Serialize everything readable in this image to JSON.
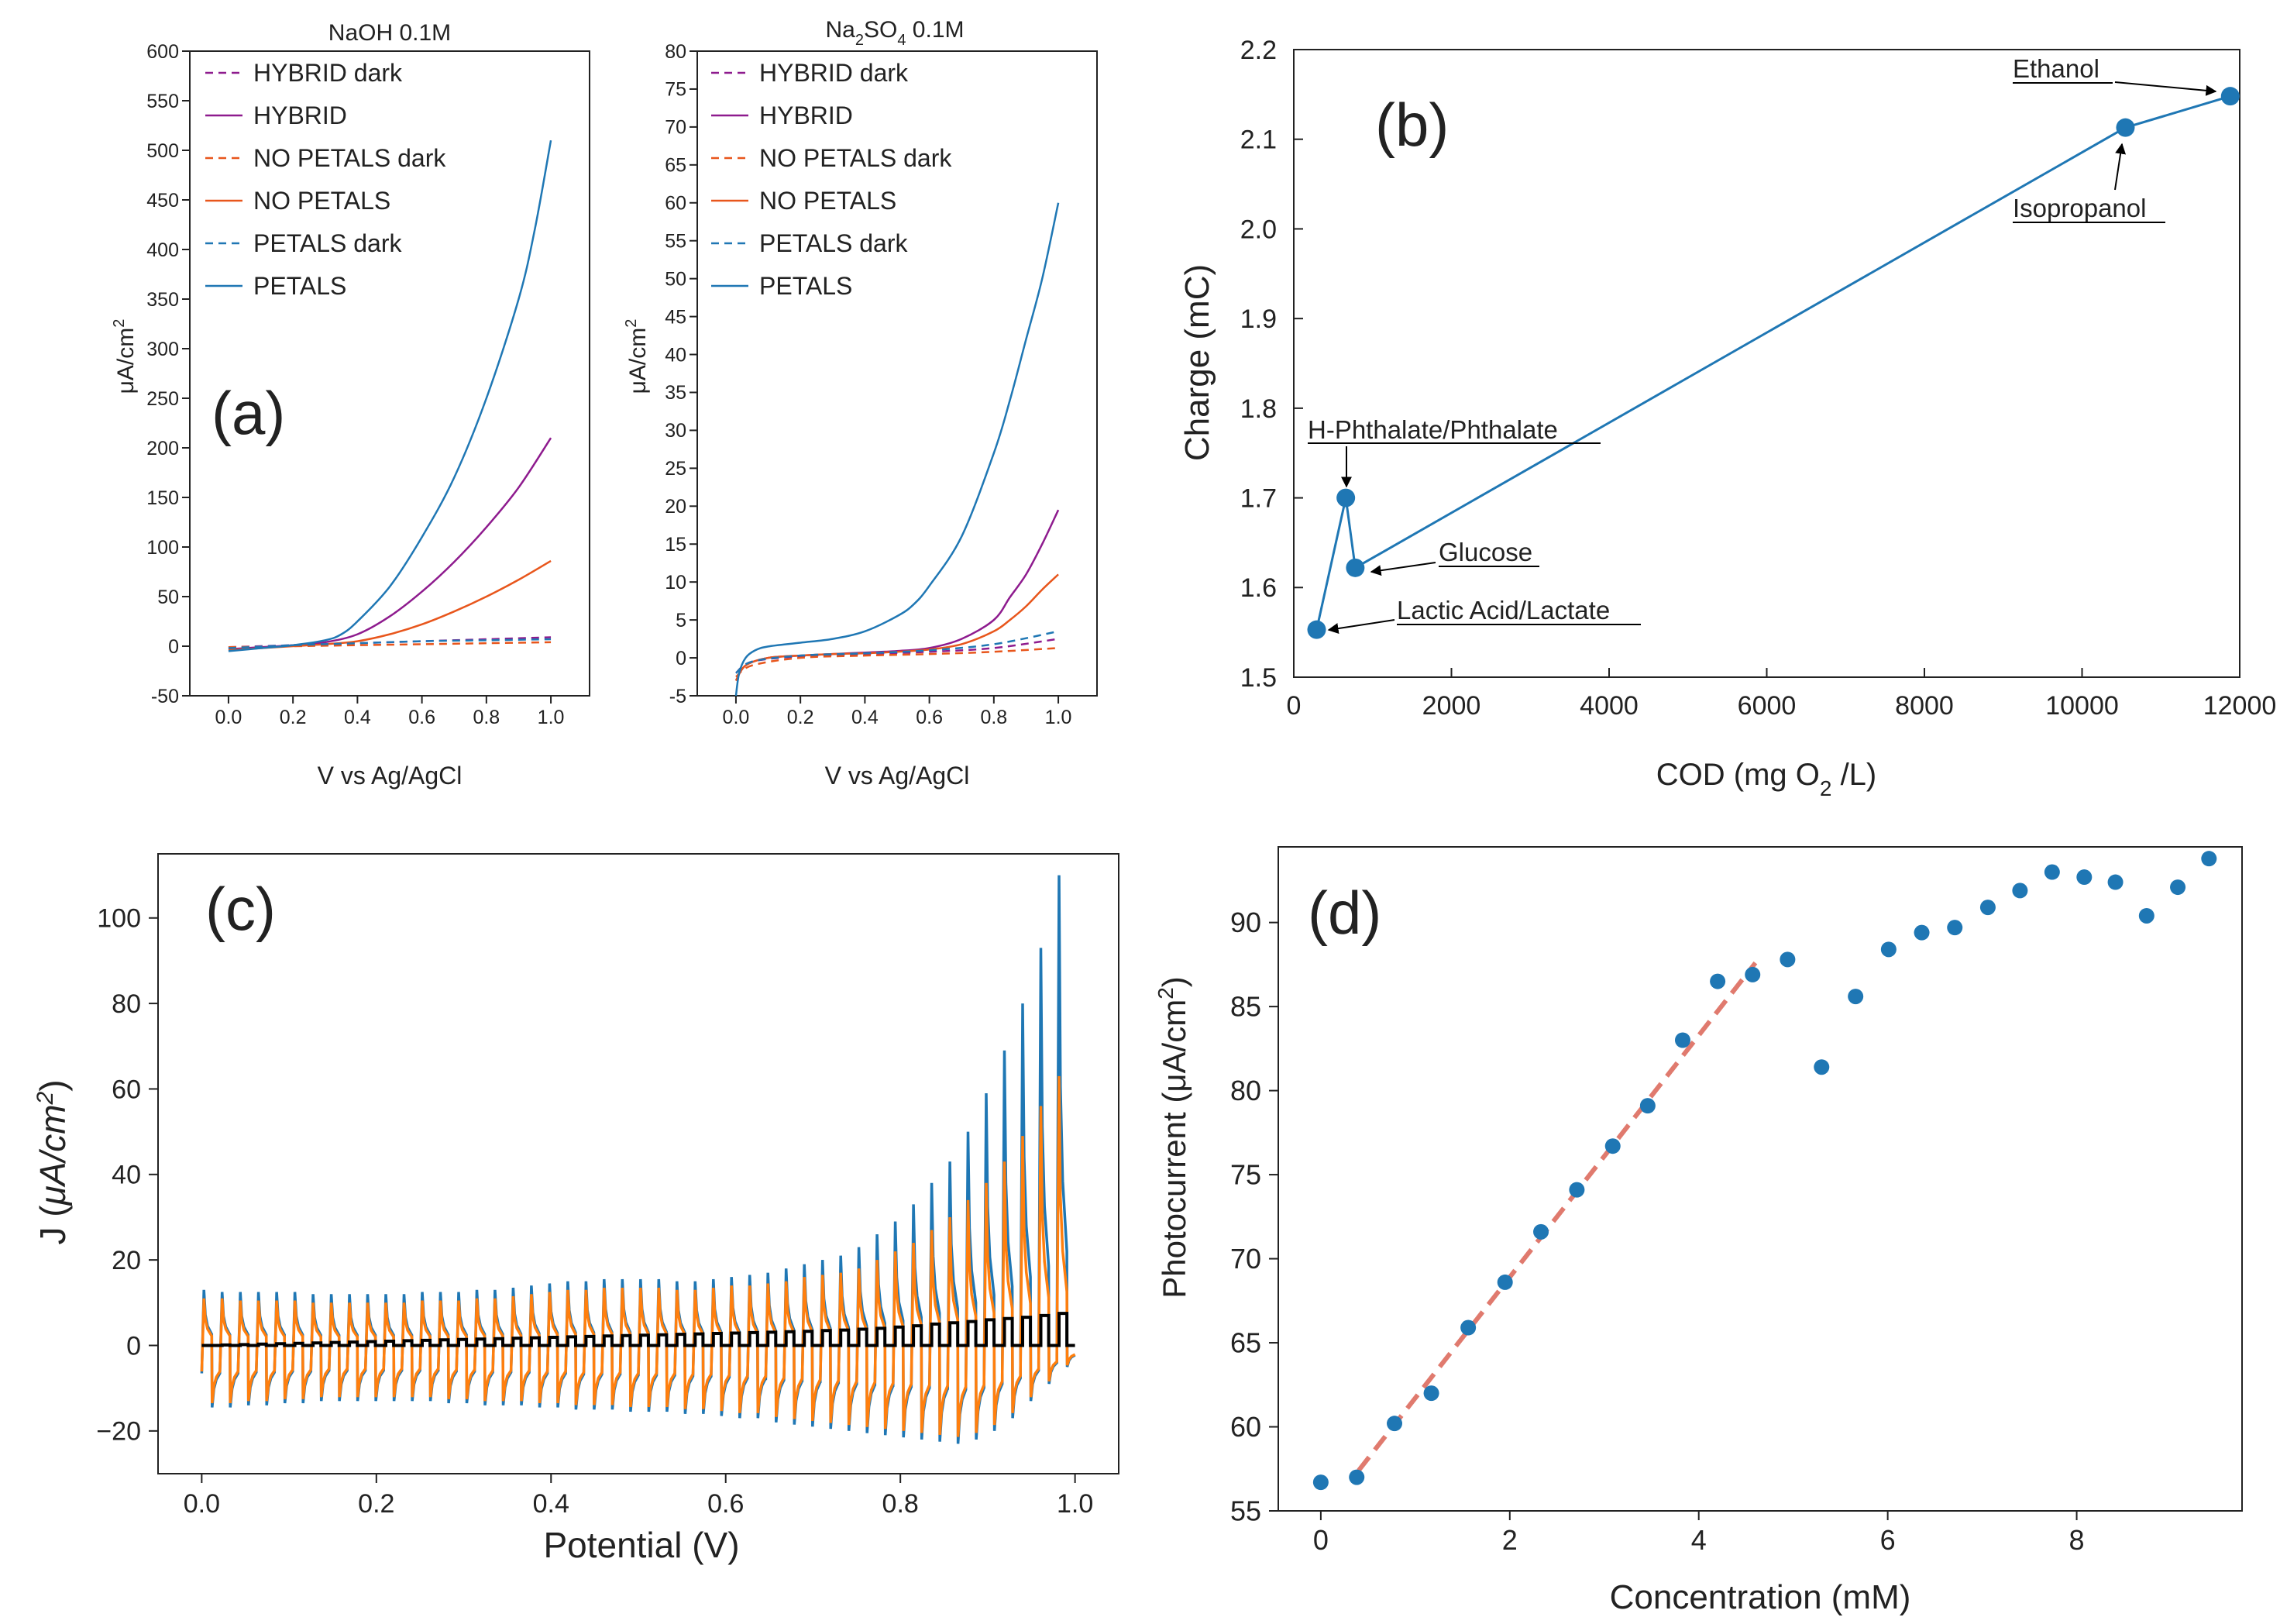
{
  "colors": {
    "hybrid": "#8e1b8e",
    "nopetals": "#e8561c",
    "petals": "#1f77b4",
    "blue": "#1f77b4",
    "orange": "#ff7f0e",
    "black": "#000000",
    "fit": "#e07a6e",
    "axis": "#000000"
  },
  "chart_data": [
    {
      "id": "a1",
      "type": "line",
      "title": "NaOH 0.1M",
      "panel_label": "(a)",
      "xlabel": "V vs Ag/AgCl",
      "ylabel": "μA/cm",
      "ylabel_sup": "2",
      "xlim": [
        -0.12,
        1.12
      ],
      "ylim": [
        -50,
        600
      ],
      "xticks": [
        0,
        0.2,
        0.4,
        0.6,
        0.8,
        1.0
      ],
      "xtick_labels": [
        "0.0",
        "0.2",
        "0.4",
        "0.6",
        "0.8",
        "1.0"
      ],
      "yticks": [
        -50,
        0,
        50,
        100,
        150,
        200,
        250,
        300,
        350,
        400,
        450,
        500,
        550,
        600
      ],
      "ytick_labels": [
        "-50",
        "0",
        "50",
        "100",
        "150",
        "200",
        "250",
        "300",
        "350",
        "400",
        "450",
        "500",
        "550",
        "600"
      ],
      "series": [
        {
          "name": "HYBRID dark",
          "color": "hybrid",
          "dashed": true,
          "x": [
            0,
            0.2,
            0.4,
            0.6,
            0.8,
            1.0
          ],
          "y": [
            -1,
            1,
            3,
            5,
            7,
            9
          ]
        },
        {
          "name": "HYBRID",
          "color": "hybrid",
          "dashed": false,
          "x": [
            0,
            0.1,
            0.2,
            0.3,
            0.4,
            0.5,
            0.6,
            0.7,
            0.8,
            0.9,
            1.0
          ],
          "y": [
            -3,
            -1,
            1,
            4,
            12,
            30,
            55,
            85,
            120,
            160,
            210
          ]
        },
        {
          "name": "NO PETALS dark",
          "color": "nopetals",
          "dashed": true,
          "x": [
            0,
            0.2,
            0.4,
            0.6,
            0.8,
            1.0
          ],
          "y": [
            -1,
            0,
            1,
            2,
            3,
            4
          ]
        },
        {
          "name": "NO PETALS",
          "color": "nopetals",
          "dashed": false,
          "x": [
            0,
            0.1,
            0.2,
            0.3,
            0.4,
            0.5,
            0.6,
            0.7,
            0.8,
            0.9,
            1.0
          ],
          "y": [
            -4,
            -2,
            0,
            2,
            5,
            12,
            22,
            35,
            50,
            67,
            86
          ]
        },
        {
          "name": "PETALS dark",
          "color": "petals",
          "dashed": true,
          "x": [
            0,
            0.2,
            0.4,
            0.6,
            0.8,
            1.0
          ],
          "y": [
            -2,
            1,
            3,
            5,
            6,
            7
          ]
        },
        {
          "name": "PETALS",
          "color": "petals",
          "dashed": false,
          "x": [
            0,
            0.1,
            0.2,
            0.3,
            0.35,
            0.4,
            0.5,
            0.6,
            0.7,
            0.8,
            0.9,
            0.95,
            1.0
          ],
          "y": [
            -5,
            -2,
            1,
            6,
            12,
            25,
            60,
            110,
            170,
            250,
            350,
            420,
            510
          ]
        }
      ]
    },
    {
      "id": "a2",
      "type": "line",
      "title_parts": [
        "Na",
        "2",
        "SO",
        "4",
        " 0.1M"
      ],
      "xlabel": "V vs Ag/AgCl",
      "ylabel": "μA/cm",
      "ylabel_sup": "2",
      "xlim": [
        -0.12,
        1.12
      ],
      "ylim": [
        -5,
        80
      ],
      "xticks": [
        0,
        0.2,
        0.4,
        0.6,
        0.8,
        1.0
      ],
      "xtick_labels": [
        "0.0",
        "0.2",
        "0.4",
        "0.6",
        "0.8",
        "1.0"
      ],
      "yticks": [
        -5,
        0,
        5,
        10,
        15,
        20,
        25,
        30,
        35,
        40,
        45,
        50,
        55,
        60,
        65,
        70,
        75,
        80
      ],
      "ytick_labels": [
        "-5",
        "0",
        "5",
        "10",
        "15",
        "20",
        "25",
        "30",
        "35",
        "40",
        "45",
        "50",
        "55",
        "60",
        "65",
        "70",
        "75",
        "80"
      ],
      "series": [
        {
          "name": "HYBRID dark",
          "color": "hybrid",
          "dashed": true,
          "x": [
            0,
            0.05,
            0.2,
            0.4,
            0.6,
            0.8,
            1.0
          ],
          "y": [
            -2,
            -0.5,
            0.2,
            0.5,
            0.8,
            1.3,
            2.5
          ]
        },
        {
          "name": "HYBRID",
          "color": "hybrid",
          "dashed": false,
          "x": [
            0,
            0.03,
            0.1,
            0.2,
            0.3,
            0.4,
            0.5,
            0.6,
            0.7,
            0.8,
            0.85,
            0.9,
            0.95,
            1.0
          ],
          "y": [
            -3,
            -1,
            0,
            0.3,
            0.5,
            0.7,
            0.9,
            1.3,
            2.5,
            5,
            8,
            11,
            15,
            19.5
          ]
        },
        {
          "name": "NO PETALS dark",
          "color": "nopetals",
          "dashed": true,
          "x": [
            0,
            0.05,
            0.2,
            0.4,
            0.6,
            0.8,
            1.0
          ],
          "y": [
            -2.5,
            -1,
            0,
            0.3,
            0.5,
            0.8,
            1.3
          ]
        },
        {
          "name": "NO PETALS",
          "color": "nopetals",
          "dashed": false,
          "x": [
            0,
            0.03,
            0.1,
            0.2,
            0.3,
            0.4,
            0.5,
            0.6,
            0.7,
            0.8,
            0.85,
            0.9,
            0.95,
            1.0
          ],
          "y": [
            -3,
            -1,
            0,
            0.3,
            0.5,
            0.6,
            0.8,
            1.1,
            1.8,
            3.5,
            5,
            6.8,
            9,
            11
          ]
        },
        {
          "name": "PETALS dark",
          "color": "petals",
          "dashed": true,
          "x": [
            0,
            0.05,
            0.2,
            0.4,
            0.6,
            0.8,
            1.0
          ],
          "y": [
            -2,
            -0.5,
            0.3,
            0.6,
            1,
            1.8,
            3.5
          ]
        },
        {
          "name": "PETALS",
          "color": "petals",
          "dashed": false,
          "x": [
            0,
            0.01,
            0.03,
            0.06,
            0.1,
            0.2,
            0.3,
            0.4,
            0.5,
            0.55,
            0.6,
            0.7,
            0.8,
            0.85,
            0.9,
            0.95,
            1.0
          ],
          "y": [
            -5,
            -2,
            0,
            1,
            1.5,
            2,
            2.5,
            3.5,
            5.5,
            7,
            9.5,
            16,
            27,
            34,
            42,
            50,
            60
          ]
        }
      ]
    },
    {
      "id": "b",
      "type": "line",
      "panel_label": "(b)",
      "xlabel_parts": [
        "COD (mg O",
        "2",
        " /L)"
      ],
      "ylabel": "Charge (mC)",
      "xlim": [
        0,
        12000
      ],
      "ylim": [
        1.5,
        2.2
      ],
      "xticks": [
        0,
        2000,
        4000,
        6000,
        8000,
        10000,
        12000
      ],
      "xtick_labels": [
        "0",
        "2000",
        "4000",
        "6000",
        "8000",
        "10000",
        "12000"
      ],
      "yticks": [
        1.5,
        1.6,
        1.7,
        1.8,
        1.9,
        2.0,
        2.1,
        2.2
      ],
      "ytick_labels": [
        "1.5",
        "1.6",
        "1.7",
        "1.8",
        "1.9",
        "2.0",
        "2.1",
        "2.2"
      ],
      "x": [
        290,
        660,
        780,
        10550,
        11880
      ],
      "y": [
        1.553,
        1.7,
        1.622,
        2.113,
        2.148
      ],
      "annotations": [
        "Lactic Acid/Lactate",
        "H-Phthalate/Phthalate",
        "Glucose",
        "Isopropanol",
        "Ethanol"
      ]
    },
    {
      "id": "c",
      "type": "line",
      "panel_label": "(c)",
      "xlabel": "Potential (V)",
      "ylabel_parts": [
        "J (",
        "μA/cm",
        "2",
        ")"
      ],
      "xlim": [
        -0.05,
        1.05
      ],
      "ylim": [
        -30,
        115
      ],
      "xticks": [
        0,
        0.2,
        0.4,
        0.6,
        0.8,
        1.0
      ],
      "xtick_labels": [
        "0.0",
        "0.2",
        "0.4",
        "0.6",
        "0.8",
        "1.0"
      ],
      "yticks": [
        -20,
        0,
        20,
        40,
        60,
        80,
        100
      ],
      "ytick_labels": [
        "−20",
        "0",
        "20",
        "40",
        "60",
        "80",
        "100"
      ],
      "chopped_light": {
        "cycles": 48,
        "x_start": 0.0,
        "x_end": 1.0,
        "blue_peak": [
          13,
          12.5,
          12.5,
          12.5,
          12.5,
          12.5,
          12,
          12,
          12,
          12,
          12,
          12,
          12.5,
          12.5,
          12.5,
          13,
          13,
          13.5,
          14,
          14.5,
          15,
          15,
          15.5,
          15.5,
          15.5,
          15.5,
          15,
          15,
          15.5,
          16,
          16.5,
          17,
          18,
          19,
          20,
          21,
          23,
          26,
          29,
          33,
          38,
          43,
          50,
          59,
          69,
          80,
          93,
          110
        ],
        "orange_peak": [
          11,
          11,
          10.5,
          10.5,
          10.5,
          10.5,
          10,
          10,
          10,
          10,
          10,
          10,
          10.5,
          10.5,
          10.5,
          11,
          11,
          11.5,
          12,
          12.5,
          13,
          13,
          13.5,
          13.5,
          13.5,
          13.5,
          13,
          13,
          13.5,
          14,
          14,
          14.5,
          15,
          16,
          16.5,
          17,
          18,
          20,
          22,
          24,
          27,
          30,
          34,
          38,
          43,
          49,
          56,
          63
        ],
        "trough": [
          -14.5,
          -14.5,
          -14,
          -14,
          -13.5,
          -13.5,
          -13,
          -13,
          -13,
          -13,
          -13,
          -13,
          -13,
          -13.5,
          -13.5,
          -14,
          -14,
          -14,
          -14.5,
          -14.5,
          -15,
          -15,
          -15,
          -15.5,
          -15.5,
          -15.5,
          -16,
          -16,
          -16.5,
          -17,
          -17,
          -18,
          -18.5,
          -19,
          -19.5,
          -20,
          -20.5,
          -21,
          -21.5,
          -22,
          -22.5,
          -23,
          -22,
          -20,
          -17,
          -13,
          -9,
          -5
        ],
        "dark_amp": [
          0,
          0.1,
          0.2,
          0.3,
          0.4,
          0.5,
          0.6,
          0.7,
          0.8,
          0.9,
          1,
          1.1,
          1.2,
          1.3,
          1.4,
          1.5,
          1.6,
          1.7,
          1.8,
          1.9,
          2,
          2.1,
          2.2,
          2.3,
          2.4,
          2.5,
          2.6,
          2.7,
          2.8,
          2.9,
          3,
          3.1,
          3.2,
          3.3,
          3.5,
          3.6,
          3.8,
          4,
          4.3,
          4.6,
          5,
          5.3,
          5.6,
          6,
          6.3,
          6.6,
          7,
          7.5
        ]
      }
    },
    {
      "id": "d",
      "type": "scatter",
      "panel_label": "(d)",
      "xlabel": "Concentration (mM)",
      "ylabel_parts": [
        "Photocurrent (μA/cm",
        "2",
        ")"
      ],
      "xlim": [
        -0.45,
        9.75
      ],
      "ylim": [
        55,
        94.5
      ],
      "xticks": [
        0,
        2,
        4,
        6,
        8
      ],
      "xtick_labels": [
        "0",
        "2",
        "4",
        "6",
        "8"
      ],
      "yticks": [
        55,
        60,
        65,
        70,
        75,
        80,
        85,
        90
      ],
      "ytick_labels": [
        "55",
        "60",
        "65",
        "70",
        "75",
        "80",
        "85",
        "90"
      ],
      "x": [
        0,
        0.38,
        0.78,
        1.17,
        1.56,
        1.95,
        2.33,
        2.71,
        3.09,
        3.46,
        3.83,
        4.2,
        4.57,
        4.94,
        5.3,
        5.66,
        6.01,
        6.36,
        6.71,
        7.06,
        7.4,
        7.74,
        8.08,
        8.41,
        8.74,
        9.07,
        9.4
      ],
      "y": [
        56.7,
        57.0,
        60.2,
        62.0,
        65.9,
        68.6,
        71.6,
        74.1,
        76.7,
        79.1,
        83.0,
        86.5,
        86.9,
        87.8,
        81.4,
        85.6,
        88.4,
        89.4,
        89.7,
        90.9,
        91.9,
        93.0,
        92.7,
        92.4,
        90.4,
        92.1,
        93.8
      ],
      "fit": {
        "x": [
          0.4,
          4.6
        ],
        "y": [
          57.4,
          87.6
        ]
      }
    }
  ]
}
